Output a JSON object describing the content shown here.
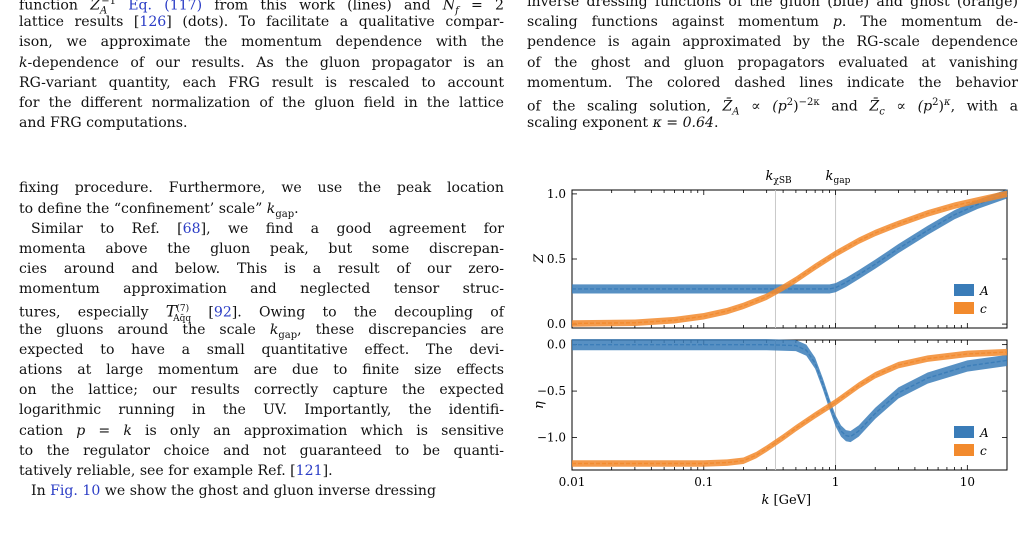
{
  "left": {
    "caption_lines": [
      [
        "function ",
        "Z̄",
        "A",
        "−1",
        " ",
        "Eq. (117)",
        " from this work (lines) and ",
        "N",
        "f",
        " = 2"
      ],
      "lattice results [126] (dots). To facilitate a qualitative compar-",
      "ison, we approximate the momentum dependence with the",
      "k-dependence of our results. As the gluon propagator is an",
      "RG-variant quantity, each FRG result is rescaled to account",
      "for the different normalization of the gluon field in the lattice",
      "and FRG computations."
    ],
    "l1_a": "function ",
    "l1_eq": "Eq. (117)",
    "l1_b": " from this work (lines) and ",
    "l1_c": " = 2",
    "l2_a": "lattice results [",
    "l2_ref": "126",
    "l2_b": "] (dots). To facilitate a qualitative compar-",
    "l3": "ison, we approximate the momentum dependence with the",
    "l4_k": "k",
    "l4_b": "-dependence of our results. As the gluon propagator is an",
    "l5": "RG-variant quantity, each FRG result is rescaled to account",
    "l6": "for the different normalization of the gluon field in the lattice",
    "l7": "and FRG computations.",
    "p1_a": "fixing procedure. Furthermore, we use the peak location",
    "p1_b": "to define the “confinement’ scale” ",
    "p1_k": "k",
    "p1_sub": "gap",
    "p1_end": ".",
    "p2_1a": "Similar to Ref. [",
    "p2_1ref": "68",
    "p2_1b": "], we find a good agreement for",
    "p2_2": "momenta above the gluon peak, but some discrepan-",
    "p2_3": "cies around and below.   This is a result of our zero-",
    "p2_4": "momentum approximation and neglected tensor struc-",
    "p2_5a": "tures, especially ",
    "p2_5T": "T",
    "p2_5sup": "(7)",
    "p2_5sub": "Aq̄q",
    "p2_5ref": "92",
    "p2_5b": ". Owing to the decoupling of",
    "p2_6a": "the gluons around the scale ",
    "p2_6k": "k",
    "p2_6sub": "gap",
    "p2_6b": ", these discrepancies are",
    "p2_7": "expected to have a small quantitative effect. The devi-",
    "p2_8": "ations at large momentum are due to finite size effects",
    "p2_9": "on the lattice; our results correctly capture the expected",
    "p2_10": "logarithmic running in the UV. Importantly, the identifi-",
    "p2_11a": "cation ",
    "p2_11b": "p = k",
    "p2_11c": " is only an approximation which is sensitive",
    "p2_12": "to the regulator choice and not guaranteed to be quanti-",
    "p2_13a": "tatively reliable, see for example Ref. [",
    "p2_13ref": "121",
    "p2_13b": "].",
    "p3_a": "In ",
    "p3_fig": "Fig. 10",
    "p3_b": " we show the ghost and gluon inverse dressing"
  },
  "right": {
    "r0": "inverse dressing functions of the gluon (blue) and ghost (orange)",
    "r1a": "scaling functions against momentum ",
    "r1p": "p",
    "r1b": ". The momentum de-",
    "r2": "pendence is again approximated by the RG-scale dependence",
    "r3": "of the ghost and gluon propagators evaluated at vanishing",
    "r4": "momentum. The colored dashed lines indicate the behavior",
    "r5a": "of the scaling solution, ",
    "r5b": "Z̄",
    "r5c": "A",
    "r5d": " ∝ (p",
    "r5e": "2",
    "r5f": ")",
    "r5g": "−2κ",
    "r5h": " and ",
    "r5i": "Z̄",
    "r5j": "c",
    "r5k": " ∝ (p",
    "r5l": "2",
    "r5m": ")",
    "r5n": "κ",
    "r5o": ", with a",
    "r6a": "scaling exponent ",
    "r6b": "κ = 0.64",
    "r6c": "."
  },
  "chart_data": [
    {
      "type": "line",
      "panel": "top",
      "ylabel": "Z",
      "xscale": "log",
      "xlim": [
        0.01,
        20
      ],
      "ylim": [
        -0.03,
        1.03
      ],
      "yticks": [
        "0.0",
        "0.5",
        "1.0"
      ],
      "vlines": [
        {
          "label": "k",
          "sub": "χSB",
          "x": 0.35
        },
        {
          "label": "k",
          "sub": "gap",
          "x": 1.0
        }
      ],
      "legend": "bottom-right",
      "series": [
        {
          "name": "A",
          "color": "#3a7cb8",
          "band": 0.035,
          "x": [
            0.01,
            0.05,
            0.1,
            0.2,
            0.4,
            0.7,
            0.9,
            1.0,
            1.2,
            1.5,
            2,
            3,
            5,
            8,
            12,
            20
          ],
          "y": [
            0.27,
            0.27,
            0.27,
            0.27,
            0.27,
            0.27,
            0.27,
            0.28,
            0.32,
            0.38,
            0.46,
            0.58,
            0.72,
            0.84,
            0.92,
            1.0
          ]
        },
        {
          "name": "c",
          "color": "#f28a2d",
          "band": 0.025,
          "x": [
            0.01,
            0.03,
            0.06,
            0.1,
            0.15,
            0.2,
            0.3,
            0.4,
            0.5,
            0.7,
            1.0,
            1.5,
            2,
            3,
            5,
            8,
            12,
            20
          ],
          "y": [
            0.005,
            0.01,
            0.03,
            0.06,
            0.1,
            0.14,
            0.21,
            0.28,
            0.34,
            0.44,
            0.54,
            0.64,
            0.7,
            0.77,
            0.85,
            0.91,
            0.95,
            1.0
          ]
        }
      ]
    },
    {
      "type": "line",
      "panel": "bottom",
      "ylabel": "η",
      "xlabel": "k [GeV]",
      "xscale": "log",
      "xlim": [
        0.01,
        20
      ],
      "ylim": [
        -1.35,
        0.05
      ],
      "xticks": [
        "0.01",
        "0.1",
        "1",
        "10"
      ],
      "yticks": [
        "0.0",
        "−0.5",
        "−1.0"
      ],
      "legend": "bottom-right",
      "series": [
        {
          "name": "A",
          "color": "#3a7cb8",
          "band": 0.06,
          "x": [
            0.01,
            0.1,
            0.3,
            0.5,
            0.6,
            0.7,
            0.8,
            0.9,
            1.0,
            1.1,
            1.2,
            1.3,
            1.5,
            2,
            3,
            5,
            10,
            20
          ],
          "y": [
            0.0,
            0.0,
            0.0,
            -0.01,
            -0.06,
            -0.2,
            -0.42,
            -0.64,
            -0.82,
            -0.93,
            -0.98,
            -0.99,
            -0.93,
            -0.74,
            -0.52,
            -0.36,
            -0.23,
            -0.17
          ]
        },
        {
          "name": "c",
          "color": "#f28a2d",
          "band": 0.035,
          "x": [
            0.01,
            0.05,
            0.1,
            0.15,
            0.2,
            0.25,
            0.3,
            0.4,
            0.5,
            0.7,
            1.0,
            1.5,
            2,
            3,
            5,
            10,
            20
          ],
          "y": [
            -1.28,
            -1.28,
            -1.28,
            -1.27,
            -1.25,
            -1.19,
            -1.12,
            -1.0,
            -0.9,
            -0.76,
            -0.62,
            -0.44,
            -0.33,
            -0.22,
            -0.15,
            -0.1,
            -0.08
          ]
        }
      ]
    }
  ],
  "fig_text": {
    "kchi": "k",
    "kchi_sub": "χSB",
    "kgap": "k",
    "kgap_sub": "gap",
    "top_ylabel": "Z",
    "bot_ylabel": "η",
    "xlabel_k": "k",
    "xlabel_unit": " [GeV]",
    "legend_A": "A",
    "legend_c": "c"
  }
}
